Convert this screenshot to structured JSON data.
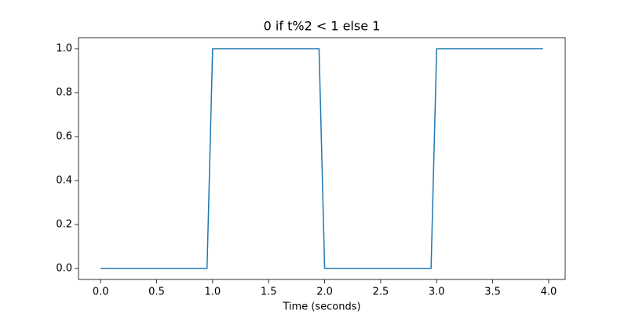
{
  "chart_data": {
    "type": "line",
    "title": "0 if t%2 < 1 else 1",
    "x_label": "Time (seconds)",
    "x": [
      0,
      0.95,
      1.0,
      1.95,
      2.0,
      2.95,
      3.0,
      3.95
    ],
    "series": [
      {
        "color": "#1f77b4",
        "values": [
          0,
          0,
          1,
          1,
          0,
          0,
          1,
          1
        ]
      }
    ],
    "xlim": [
      -0.1975,
      4.1475
    ],
    "ylim": [
      -0.05,
      1.05
    ],
    "xticks": [
      {
        "value": 0,
        "label": "0.0"
      },
      {
        "value": 0.5,
        "label": "0.5"
      },
      {
        "value": 1,
        "label": "1.0"
      },
      {
        "value": 1.5,
        "label": "1.5"
      },
      {
        "value": 2,
        "label": "2.0"
      },
      {
        "value": 2.5,
        "label": "2.5"
      },
      {
        "value": 3,
        "label": "3.0"
      },
      {
        "value": 3.5,
        "label": "3.5"
      },
      {
        "value": 4,
        "label": "4.0"
      }
    ],
    "yticks": [
      {
        "value": 0,
        "label": "0.0"
      },
      {
        "value": 0.2,
        "label": "0.2"
      },
      {
        "value": 0.4,
        "label": "0.4"
      },
      {
        "value": 0.6,
        "label": "0.6"
      },
      {
        "value": 0.8,
        "label": "0.8"
      },
      {
        "value": 1,
        "label": "1.0"
      }
    ],
    "grid": false
  }
}
